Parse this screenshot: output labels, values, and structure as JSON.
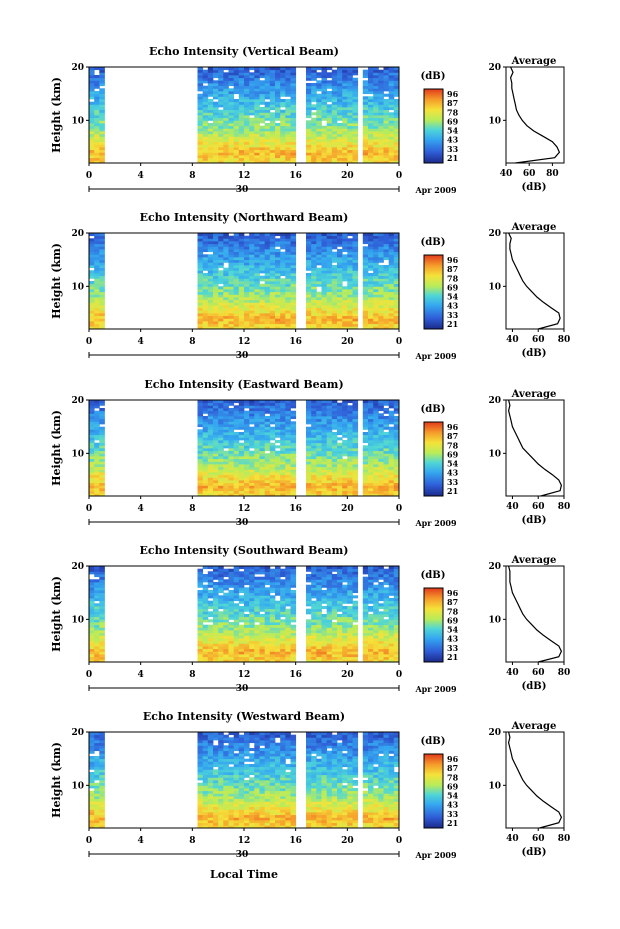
{
  "figure": {
    "xlabel": "Local Time",
    "date_label": "Apr 2009",
    "day_label": "30",
    "colorbar_unit": "(dB)",
    "colorbar_ticks": [
      "96",
      "87",
      "78",
      "69",
      "54",
      "43",
      "33",
      "21"
    ],
    "avg_title": "Average",
    "avg_xlabel": "(dB)",
    "height_label": "Height (km)",
    "height_ticks": [
      "20",
      "10"
    ],
    "x_ticks": [
      "0",
      "4",
      "8",
      "12",
      "16",
      "20",
      "0"
    ]
  },
  "chart_data": [
    {
      "type": "heatmap",
      "title": "Echo Intensity (Vertical Beam)",
      "xlabel": "",
      "ylabel": "Height (km)",
      "xlim": [
        0,
        24
      ],
      "ylim": [
        2,
        20
      ],
      "z_range": [
        21,
        96
      ],
      "data_gaps_hours": [
        [
          1.4,
          8.2
        ],
        [
          16.2,
          16.8
        ],
        [
          20.7,
          21.0
        ]
      ],
      "avg_profile": {
        "xlabel": "(dB)",
        "x_ticks": [
          "40",
          "60",
          "80"
        ],
        "xlim": [
          40,
          90
        ],
        "y": [
          2,
          3,
          4,
          5,
          6,
          7,
          8,
          9,
          10,
          11,
          12,
          13,
          14,
          15,
          16,
          17,
          18,
          19,
          20
        ],
        "x": [
          48,
          82,
          86,
          84,
          80,
          72,
          64,
          58,
          54,
          51,
          49,
          48,
          47,
          46,
          45,
          45,
          44,
          46,
          44
        ]
      }
    },
    {
      "type": "heatmap",
      "title": "Echo Intensity (Northward Beam)",
      "xlabel": "",
      "ylabel": "Height (km)",
      "xlim": [
        0,
        24
      ],
      "ylim": [
        2,
        20
      ],
      "z_range": [
        21,
        96
      ],
      "data_gaps_hours": [
        [
          1.4,
          8.2
        ],
        [
          16.2,
          16.8
        ],
        [
          20.7,
          21.0
        ]
      ],
      "avg_profile": {
        "xlabel": "(dB)",
        "x_ticks": [
          "40",
          "60",
          "80"
        ],
        "xlim": [
          35,
          80
        ],
        "y": [
          2,
          3,
          4,
          5,
          6,
          7,
          8,
          9,
          10,
          11,
          12,
          13,
          14,
          15,
          16,
          17,
          18,
          19,
          20
        ],
        "x": [
          60,
          75,
          77,
          76,
          70,
          64,
          59,
          55,
          51,
          48,
          46,
          44,
          42,
          40,
          39,
          38,
          38,
          39,
          37
        ]
      }
    },
    {
      "type": "heatmap",
      "title": "Echo Intensity (Eastward Beam)",
      "xlabel": "",
      "ylabel": "Height (km)",
      "xlim": [
        0,
        24
      ],
      "ylim": [
        2,
        20
      ],
      "z_range": [
        21,
        96
      ],
      "data_gaps_hours": [
        [
          1.4,
          8.2
        ],
        [
          16.2,
          16.8
        ],
        [
          20.7,
          21.0
        ]
      ],
      "avg_profile": {
        "xlabel": "(dB)",
        "x_ticks": [
          "40",
          "60",
          "80"
        ],
        "xlim": [
          35,
          80
        ],
        "y": [
          2,
          3,
          4,
          5,
          6,
          7,
          8,
          9,
          10,
          11,
          12,
          13,
          14,
          15,
          16,
          17,
          18,
          19,
          20
        ],
        "x": [
          62,
          77,
          78,
          76,
          71,
          65,
          60,
          56,
          52,
          48,
          46,
          44,
          42,
          40,
          39,
          38,
          37,
          38,
          37
        ]
      }
    },
    {
      "type": "heatmap",
      "title": "Echo Intensity (Southward Beam)",
      "xlabel": "",
      "ylabel": "Height (km)",
      "xlim": [
        0,
        24
      ],
      "ylim": [
        2,
        20
      ],
      "z_range": [
        21,
        96
      ],
      "data_gaps_hours": [
        [
          1.4,
          8.2
        ],
        [
          16.2,
          16.8
        ],
        [
          20.7,
          21.0
        ]
      ],
      "avg_profile": {
        "xlabel": "(dB)",
        "x_ticks": [
          "40",
          "60",
          "80"
        ],
        "xlim": [
          35,
          80
        ],
        "y": [
          2,
          3,
          4,
          5,
          6,
          7,
          8,
          9,
          10,
          11,
          12,
          13,
          14,
          15,
          16,
          17,
          18,
          19,
          20
        ],
        "x": [
          60,
          76,
          78,
          76,
          70,
          64,
          59,
          55,
          51,
          48,
          46,
          44,
          42,
          40,
          39,
          38,
          38,
          38,
          37
        ]
      }
    },
    {
      "type": "heatmap",
      "title": "Echo Intensity (Westward Beam)",
      "xlabel": "Local Time",
      "ylabel": "Height (km)",
      "xlim": [
        0,
        24
      ],
      "ylim": [
        2,
        20
      ],
      "z_range": [
        21,
        96
      ],
      "data_gaps_hours": [
        [
          1.4,
          8.2
        ],
        [
          16.2,
          16.8
        ],
        [
          20.7,
          21.0
        ]
      ],
      "avg_profile": {
        "xlabel": "(dB)",
        "x_ticks": [
          "40",
          "60",
          "80"
        ],
        "xlim": [
          35,
          80
        ],
        "y": [
          2,
          3,
          4,
          5,
          6,
          7,
          8,
          9,
          10,
          11,
          12,
          13,
          14,
          15,
          16,
          17,
          18,
          19,
          20
        ],
        "x": [
          61,
          76,
          78,
          76,
          70,
          64,
          59,
          55,
          51,
          48,
          46,
          44,
          42,
          40,
          39,
          38,
          37,
          38,
          37
        ]
      }
    }
  ]
}
